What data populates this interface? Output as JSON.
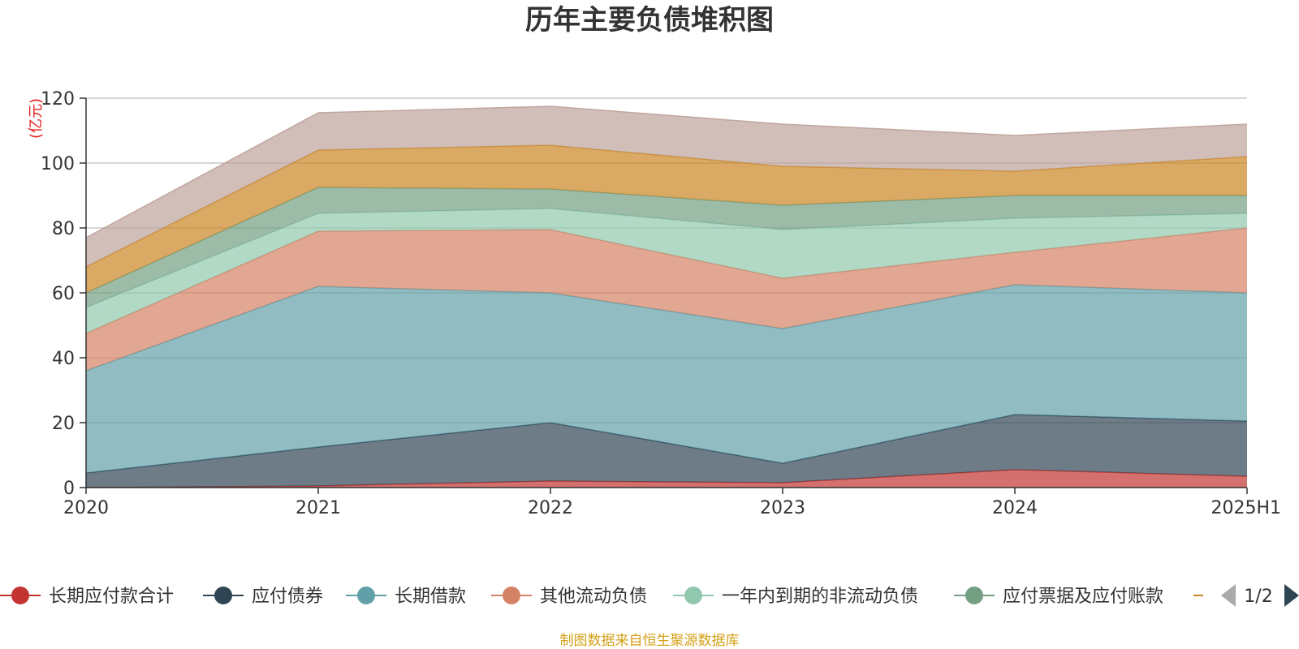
{
  "chart_data": {
    "type": "area",
    "stacked": true,
    "title": "历年主要负债堆积图",
    "unit_label": "(亿元)",
    "categories": [
      "2020",
      "2021",
      "2022",
      "2023",
      "2024",
      "2025H1"
    ],
    "ylim": [
      0,
      120
    ],
    "yticks": [
      "0",
      "20",
      "40",
      "60",
      "80",
      "100",
      "120"
    ],
    "grid": true,
    "series": [
      {
        "name": "长期应付款合计",
        "color": "#c23531",
        "values": [
          0,
          0.5,
          2,
          1.5,
          5.5,
          3.5
        ]
      },
      {
        "name": "应付债券",
        "color": "#2f4554",
        "values": [
          4.5,
          12,
          18,
          6,
          17,
          17
        ]
      },
      {
        "name": "长期借款",
        "color": "#61a0a8",
        "values": [
          31.5,
          49.5,
          40,
          41.5,
          40,
          39.5
        ]
      },
      {
        "name": "其他流动负债",
        "color": "#d48265",
        "values": [
          11.5,
          17,
          19.5,
          15.5,
          10,
          20
        ]
      },
      {
        "name": "一年内到期的非流动负债",
        "color": "#91c7ae",
        "values": [
          8,
          5.5,
          6.5,
          15,
          10.5,
          4.5
        ]
      },
      {
        "name": "应付票据及应付账款",
        "color": "#749f83",
        "values": [
          4.5,
          8,
          6,
          7.5,
          7,
          5.5
        ]
      },
      {
        "name": "",
        "color": "#ca8622",
        "values": [
          8,
          11.5,
          13.5,
          12,
          7.5,
          12
        ]
      },
      {
        "name": "",
        "color": "#bda29a",
        "values": [
          9,
          11.5,
          12,
          13,
          11,
          10
        ]
      }
    ],
    "legend_position": "bottom"
  },
  "legend": {
    "page_indicator": "1/2",
    "items": [
      {
        "label": "长期应付款合计",
        "color": "#c23531"
      },
      {
        "label": "应付债券",
        "color": "#2f4554"
      },
      {
        "label": "长期借款",
        "color": "#61a0a8"
      },
      {
        "label": "其他流动负债",
        "color": "#d48265"
      },
      {
        "label": "一年内到期的非流动负债",
        "color": "#91c7ae"
      },
      {
        "label": "应付票据及应付账款",
        "color": "#749f83"
      }
    ],
    "truncated_item_color": "#ca8622",
    "prev_arrow_color": "#aaaaaa",
    "next_arrow_color": "#2f4554"
  },
  "footer": {
    "source": "制图数据来自恒生聚源数据库"
  }
}
